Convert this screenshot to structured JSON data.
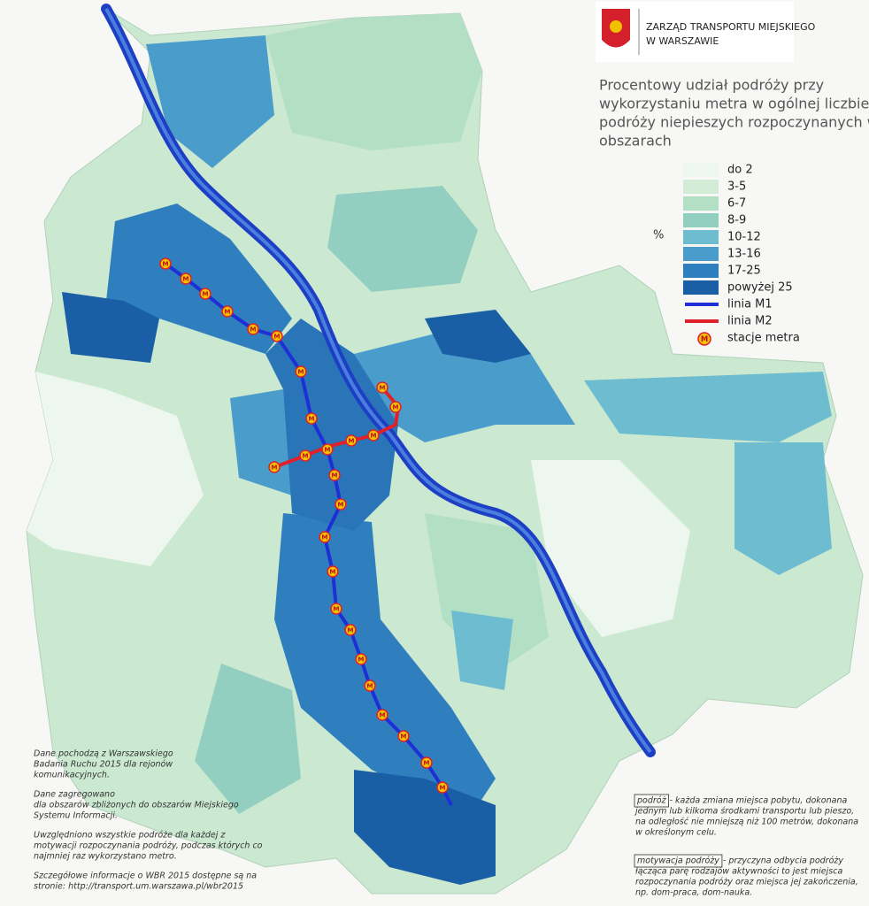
{
  "header": {
    "organization_lines": [
      "ZARZĄD TRANSPORTU MIEJSKIEGO",
      "W WARSZAWIE"
    ]
  },
  "title_lines": [
    "Procentowy udział podróży przy",
    "wykorzystaniu metra w ogólnej liczbie",
    "podróży niepieszych rozpoczynanych w",
    "obszarach"
  ],
  "legend": {
    "unit": "%",
    "items": [
      {
        "label": "do 2",
        "color": "#eef7ef"
      },
      {
        "label": "3-5",
        "color": "#d3ecd5"
      },
      {
        "label": "6-7",
        "color": "#b3dfc4"
      },
      {
        "label": "8-9",
        "color": "#92cfc0"
      },
      {
        "label": "10-12",
        "color": "#6ebcd0"
      },
      {
        "label": "13-16",
        "color": "#4a9ccb"
      },
      {
        "label": "17-25",
        "color": "#2f7fbf"
      },
      {
        "label": "powyżej 25",
        "color": "#1a5fa6"
      }
    ],
    "lines": [
      {
        "label": "linia M1",
        "color": "#1f2fd6"
      },
      {
        "label": "linia M2",
        "color": "#e0202a"
      }
    ],
    "station_label": "stacje metra"
  },
  "station_symbol": "M",
  "notes": [
    [
      "Dane pochodzą z Warszawskiego",
      "Badania Ruchu 2015 dla rejonów",
      "komunikacyjnych."
    ],
    [
      "Dane zagregowano",
      "dla obszarów zbliżonych do obszarów Miejskiego",
      "Systemu Informacji."
    ],
    [
      "Uwzględniono wszystkie podróże dla każdej z",
      "motywacji rozpoczynania podróży, podczas których co",
      "najmniej raz wykorzystano metro."
    ],
    [
      "Szczegółowe informacje o WBR 2015 dostępne są na",
      "stronie: http://transport.um.warszawa.pl/wbr2015"
    ]
  ],
  "definitions": [
    {
      "term": "podróż",
      "lines": [
        "- każda zmiana miejsca pobytu, dokonana",
        "jednym lub kilkoma środkami transportu lub pieszo,",
        "na odległość nie mniejszą niż 100 metrów, dokonana",
        "w określonym celu."
      ]
    },
    {
      "term": "motywacja podróży",
      "lines": [
        "- przyczyna odbycia podróży",
        "łącząca parę rodzajów aktywności to jest miejsca",
        "rozpoczynania podróży oraz miejsca jej zakończenia,",
        "np. dom-praca, dom-nauka."
      ]
    }
  ]
}
